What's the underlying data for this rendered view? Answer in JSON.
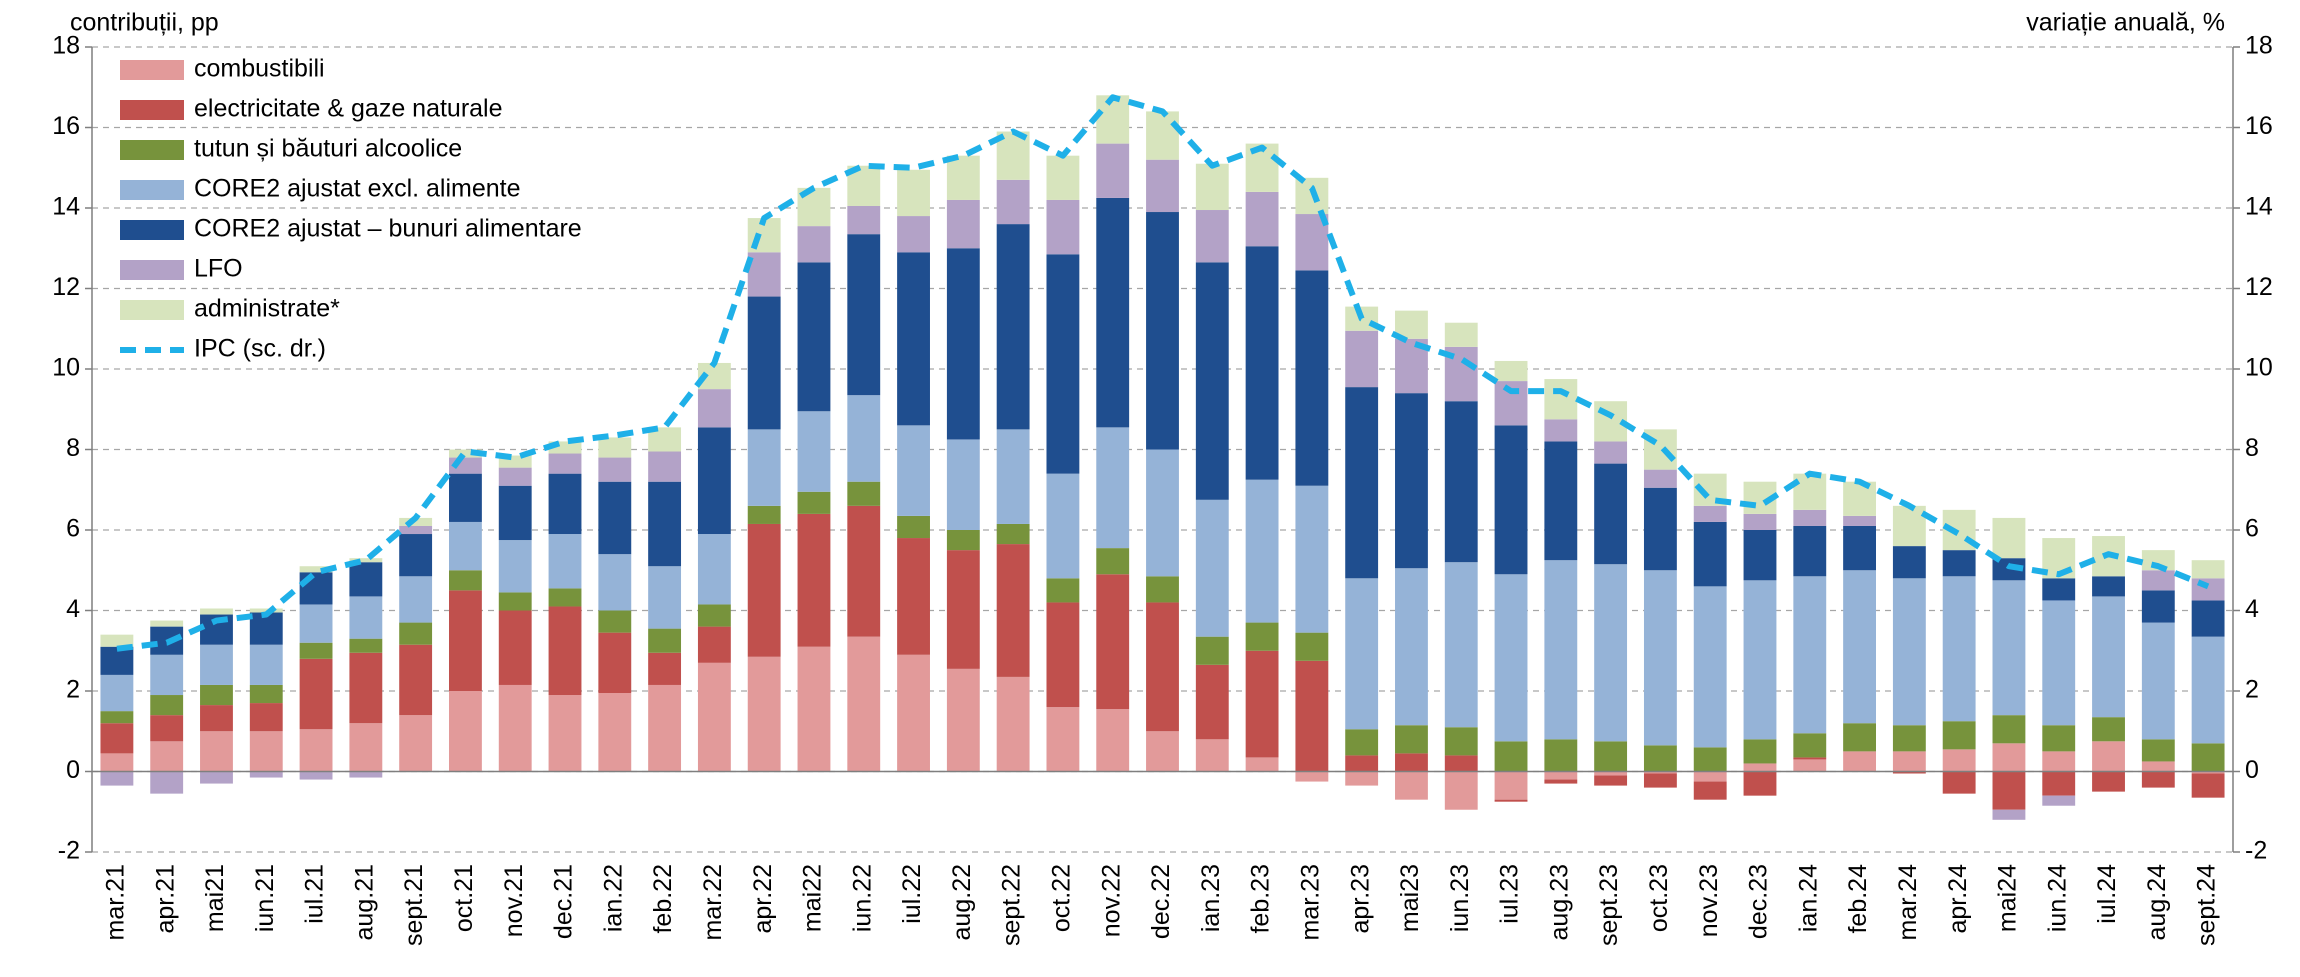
{
  "chart_data": {
    "type": "stacked_bar_line",
    "y_label": "contribuții, pp",
    "y2_label": "variație anuală, %",
    "categories": [
      "mar.21",
      "apr.21",
      "mai21",
      "iun.21",
      "iul.21",
      "aug.21",
      "sept.21",
      "oct.21",
      "nov.21",
      "dec.21",
      "ian.22",
      "feb.22",
      "mar.22",
      "apr.22",
      "mai22",
      "iun.22",
      "iul.22",
      "aug.22",
      "sept.22",
      "oct.22",
      "nov.22",
      "dec.22",
      "ian.23",
      "feb.23",
      "mar.23",
      "apr.23",
      "mai23",
      "iun.23",
      "iul.23",
      "aug.23",
      "sept.23",
      "oct.23",
      "nov.23",
      "dec.23",
      "ian.24",
      "feb.24",
      "mar.24",
      "apr.24",
      "mai24",
      "iun.24",
      "iul.24",
      "aug.24",
      "sept.24"
    ],
    "ylim": [
      -2,
      18
    ],
    "yticks": [
      -2,
      0,
      2,
      4,
      6,
      8,
      10,
      12,
      14,
      16,
      18
    ],
    "y2lim": [
      -2,
      18
    ],
    "y2ticks": [
      -2,
      0,
      2,
      4,
      6,
      8,
      10,
      12,
      14,
      16,
      18
    ],
    "grid": true,
    "legend": "upper left",
    "series": [
      {
        "name": "combustibili",
        "color": "#e29a9a",
        "values": [
          0.45,
          0.75,
          1.0,
          1.0,
          1.05,
          1.2,
          1.4,
          2.0,
          2.15,
          1.9,
          1.95,
          2.15,
          2.7,
          2.85,
          3.1,
          3.35,
          2.9,
          2.55,
          2.35,
          1.6,
          1.55,
          1.0,
          0.8,
          0.35,
          -0.25,
          -0.35,
          -0.7,
          -0.95,
          -0.7,
          -0.2,
          -0.1,
          -0.05,
          -0.25,
          0.2,
          0.3,
          0.5,
          0.5,
          0.55,
          0.7,
          0.5,
          0.75,
          0.25,
          -0.05
        ]
      },
      {
        "name": "electricitate & gaze naturale",
        "color": "#c0504d",
        "values": [
          0.75,
          0.65,
          0.65,
          0.7,
          1.75,
          1.75,
          1.75,
          2.5,
          1.85,
          2.2,
          1.5,
          0.8,
          0.9,
          3.3,
          3.3,
          3.25,
          2.9,
          2.95,
          3.3,
          2.6,
          3.35,
          3.2,
          1.85,
          2.65,
          2.75,
          0.4,
          0.45,
          0.4,
          -0.05,
          -0.1,
          -0.25,
          -0.35,
          -0.45,
          -0.6,
          0.05,
          0,
          -0.05,
          -0.55,
          -0.95,
          -0.6,
          -0.5,
          -0.4,
          -0.6
        ]
      },
      {
        "name": "tutun și băuturi alcoolice",
        "color": "#77933c",
        "values": [
          0.3,
          0.5,
          0.5,
          0.45,
          0.4,
          0.35,
          0.55,
          0.5,
          0.45,
          0.45,
          0.55,
          0.6,
          0.55,
          0.45,
          0.55,
          0.6,
          0.55,
          0.5,
          0.5,
          0.6,
          0.65,
          0.65,
          0.7,
          0.7,
          0.7,
          0.65,
          0.7,
          0.7,
          0.75,
          0.8,
          0.75,
          0.65,
          0.6,
          0.6,
          0.6,
          0.7,
          0.65,
          0.7,
          0.7,
          0.65,
          0.6,
          0.55,
          0.7
        ]
      },
      {
        "name": "CORE2 ajustat excl. alimente",
        "color": "#95b3d7",
        "values": [
          0.9,
          1.0,
          1.0,
          1.0,
          0.95,
          1.05,
          1.15,
          1.2,
          1.3,
          1.35,
          1.4,
          1.55,
          1.75,
          1.9,
          2.0,
          2.15,
          2.25,
          2.25,
          2.35,
          2.6,
          3.0,
          3.15,
          3.4,
          3.55,
          3.65,
          3.75,
          3.9,
          4.1,
          4.15,
          4.45,
          4.4,
          4.35,
          4.0,
          3.95,
          3.9,
          3.8,
          3.65,
          3.6,
          3.35,
          3.1,
          3.0,
          2.9,
          2.65
        ]
      },
      {
        "name": "CORE2 ajustat – bunuri alimentare",
        "color": "#1f4e8f",
        "values": [
          0.7,
          0.7,
          0.75,
          0.8,
          0.8,
          0.85,
          1.05,
          1.2,
          1.35,
          1.5,
          1.8,
          2.1,
          2.65,
          3.3,
          3.7,
          4.0,
          4.3,
          4.75,
          5.1,
          5.45,
          5.7,
          5.9,
          5.9,
          5.8,
          5.35,
          4.75,
          4.35,
          4.0,
          3.7,
          2.95,
          2.5,
          2.05,
          1.6,
          1.25,
          1.25,
          1.1,
          0.8,
          0.65,
          0.55,
          0.55,
          0.5,
          0.8,
          0.9
        ]
      },
      {
        "name": "LFO",
        "color": "#b3a2c7",
        "values": [
          -0.35,
          -0.55,
          -0.3,
          -0.15,
          -0.2,
          -0.15,
          0.2,
          0.4,
          0.45,
          0.5,
          0.6,
          0.75,
          0.95,
          1.1,
          0.9,
          0.7,
          0.9,
          1.2,
          1.1,
          1.35,
          1.35,
          1.3,
          1.3,
          1.35,
          1.4,
          1.4,
          1.35,
          1.35,
          1.1,
          0.55,
          0.55,
          0.45,
          0.4,
          0.4,
          0.4,
          0.25,
          0,
          0,
          -0.25,
          -0.25,
          0,
          0.5,
          0.55
        ]
      },
      {
        "name": "administrate*",
        "color": "#d7e4bd",
        "values": [
          0.3,
          0.15,
          0.15,
          0.1,
          0.15,
          0.1,
          0.2,
          0.2,
          0.3,
          0.3,
          0.5,
          0.6,
          0.65,
          0.85,
          0.95,
          1.0,
          1.15,
          1.1,
          1.2,
          1.1,
          1.2,
          1.2,
          1.15,
          1.2,
          0.9,
          0.6,
          0.7,
          0.6,
          0.5,
          1.0,
          1.0,
          1.0,
          0.8,
          0.8,
          0.9,
          0.85,
          1.0,
          1.0,
          1.0,
          1.0,
          1.0,
          0.5,
          0.45
        ]
      },
      {
        "name": "IPC (sc. dr.)",
        "color": "#1fb0e8",
        "axis": "y2",
        "style": "dashed",
        "values": [
          3.05,
          3.2,
          3.75,
          3.9,
          4.95,
          5.25,
          6.3,
          7.95,
          7.8,
          8.2,
          8.35,
          8.55,
          10.15,
          13.75,
          14.5,
          15.05,
          15.0,
          15.3,
          15.9,
          15.3,
          16.75,
          16.4,
          15.05,
          15.5,
          14.5,
          11.25,
          10.65,
          10.25,
          9.45,
          9.45,
          8.85,
          8.1,
          6.75,
          6.6,
          7.4,
          7.2,
          6.6,
          5.9,
          5.1,
          4.9,
          5.4,
          5.1,
          4.6
        ]
      }
    ]
  }
}
